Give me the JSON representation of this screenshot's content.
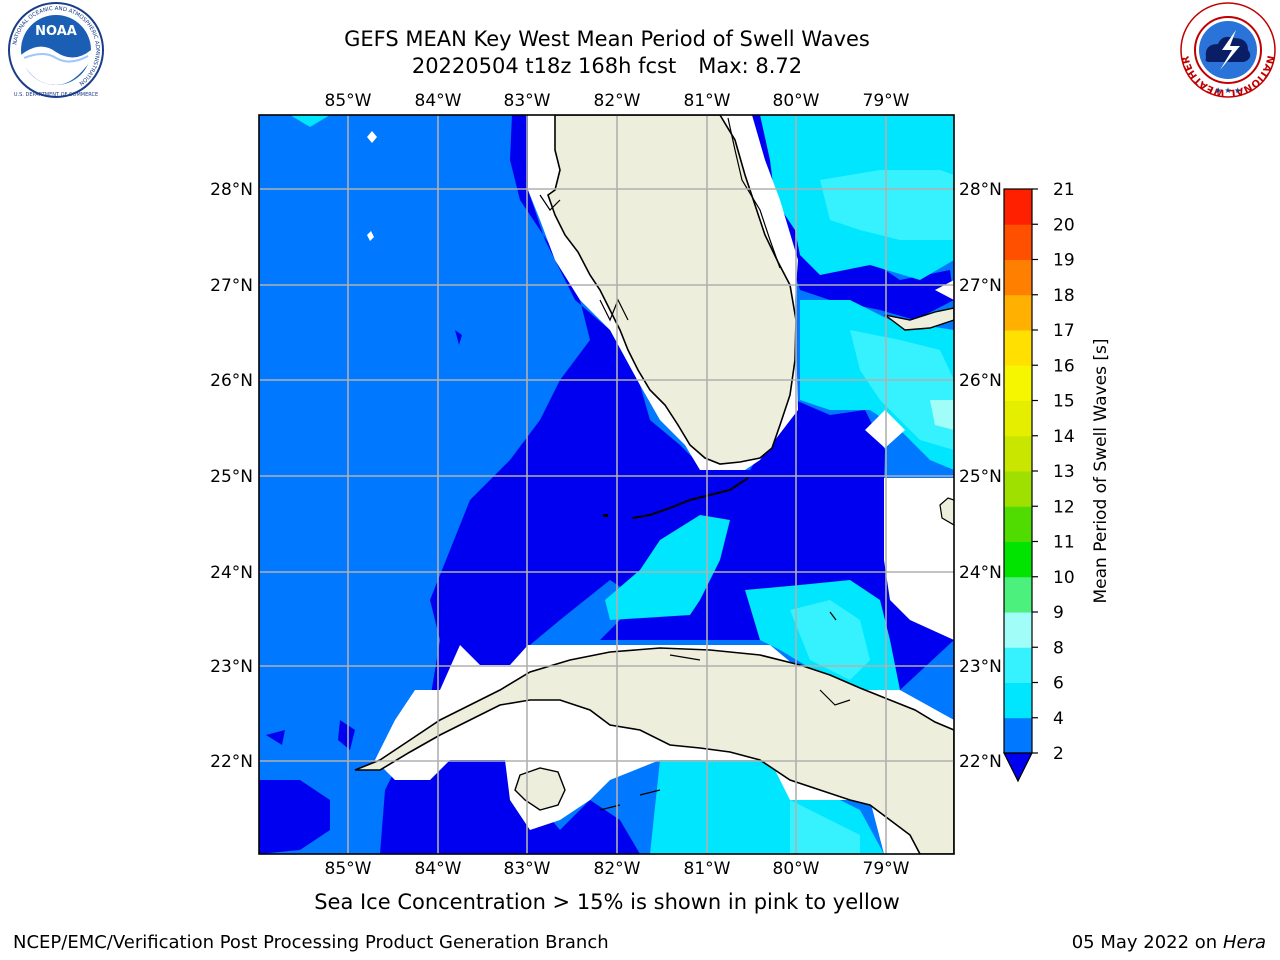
{
  "title": {
    "line1": "GEFS MEAN Key West Mean Period of Swell Waves",
    "line2_left": "20220504 t18z 168h fcst",
    "line2_right": "Max: 8.72"
  },
  "logos": {
    "left": {
      "center_text": "NOAA",
      "ring_text": "NATIONAL OCEANIC AND ATMOSPHERIC ADMINISTRATION",
      "bottom_text": "U.S. DEPARTMENT OF COMMERCE"
    },
    "right": {
      "ring_text": "NATIONAL WEATHER SERVICE"
    }
  },
  "map": {
    "lon_labels": [
      "85°W",
      "84°W",
      "83°W",
      "82°W",
      "81°W",
      "80°W",
      "79°W"
    ],
    "lat_labels": [
      "28°N",
      "27°N",
      "26°N",
      "25°N",
      "24°N",
      "23°N",
      "22°N"
    ],
    "colors": {
      "land": "#eeeedd",
      "band_2_4": "#0078ff",
      "band_below_2": "#0000f0",
      "band_4_6": "#00e6ff",
      "band_6_8": "#36f2ff",
      "band_8_9": "#a0fdf7",
      "masked": "#ffffff",
      "grid": "#b0b0b0"
    }
  },
  "colorbar": {
    "label": "Mean Period of Swell Waves [s]",
    "ticks": [
      "2",
      "4",
      "6",
      "8",
      "9",
      "10",
      "11",
      "12",
      "13",
      "14",
      "15",
      "16",
      "17",
      "18",
      "19",
      "20",
      "21"
    ],
    "colors": [
      "#0078ff",
      "#00e6ff",
      "#36f2ff",
      "#a0fdf7",
      "#4cf07c",
      "#00e400",
      "#50dc00",
      "#a0e000",
      "#c8e600",
      "#e6ee00",
      "#f6f600",
      "#ffe000",
      "#ffb000",
      "#ff8000",
      "#ff5000",
      "#ff2000"
    ],
    "under_color": "#0000f0"
  },
  "subcaption": "Sea Ice Concentration > 15% is shown in pink to yellow",
  "footer": {
    "left": "NCEP/EMC/Verification Post Processing Product Generation Branch",
    "right_prefix": "05 May 2022 on",
    "right_machine": "Hera"
  }
}
